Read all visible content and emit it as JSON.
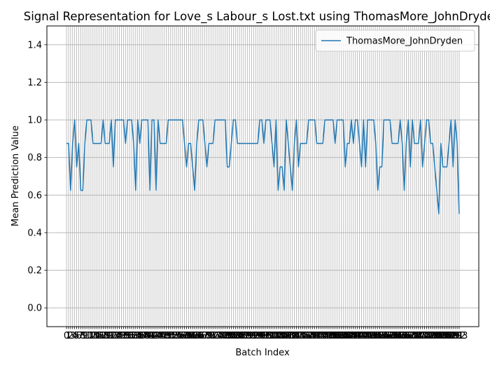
{
  "chart_data": {
    "type": "line",
    "title": "Signal Representation for Love_s Labour_s Lost.txt using ThomasMore_JohnDryden",
    "xlabel": "Batch Index",
    "ylabel": "Mean Prediction Value",
    "x": [
      0,
      1,
      2,
      3,
      4,
      5,
      6,
      7,
      8,
      9,
      10,
      11,
      12,
      13,
      14,
      15,
      16,
      17,
      18,
      19,
      20,
      21,
      22,
      23,
      24,
      25,
      26,
      27,
      28,
      29,
      30,
      31,
      32,
      33,
      34,
      35,
      36,
      37,
      38,
      39,
      40,
      41,
      42,
      43,
      44,
      45,
      46,
      47,
      48,
      49,
      50,
      51,
      52,
      53,
      54,
      55,
      56,
      57,
      58,
      59,
      60,
      61,
      62,
      63,
      64,
      65,
      66,
      67,
      68,
      69,
      70,
      71,
      72,
      73,
      74,
      75,
      76,
      77,
      78,
      79,
      80,
      81,
      82,
      83,
      84,
      85,
      86,
      87,
      88,
      89,
      90,
      91,
      92,
      93,
      94,
      95,
      96,
      97,
      98,
      99,
      100,
      101,
      102,
      103,
      104,
      105,
      106,
      107,
      108,
      109,
      110,
      111,
      112,
      113,
      114,
      115,
      116,
      117,
      118,
      119,
      120,
      121,
      122,
      123,
      124,
      125,
      126,
      127,
      128,
      129,
      130,
      131,
      132,
      133,
      134,
      135,
      136,
      137,
      138,
      139,
      140,
      141,
      142,
      143,
      144,
      145,
      146,
      147,
      148,
      149,
      150,
      151,
      152,
      153,
      154,
      155,
      156,
      157,
      158,
      159,
      160,
      161,
      162,
      163,
      164,
      165,
      166,
      167,
      168,
      169,
      170,
      171,
      172,
      173,
      174,
      175,
      176,
      177,
      178,
      179,
      180,
      181,
      182,
      183,
      184,
      185,
      186,
      187,
      188,
      189,
      190,
      191,
      192,
      193
    ],
    "series": [
      {
        "name": "ThomasMore_JohnDryden",
        "color": "#1f77b4",
        "values": [
          0.875,
          0.875,
          0.625,
          0.875,
          1,
          0.75,
          0.875,
          0.625,
          0.625,
          0.875,
          1,
          1,
          1,
          0.875,
          0.875,
          0.875,
          0.875,
          0.875,
          1,
          0.875,
          0.875,
          0.875,
          1,
          0.75,
          1,
          1,
          1,
          1,
          1,
          0.875,
          1,
          1,
          1,
          0.875,
          0.625,
          1,
          0.875,
          1,
          1,
          1,
          1,
          0.625,
          1,
          1,
          0.625,
          1,
          0.875,
          0.875,
          0.875,
          0.875,
          1,
          1,
          1,
          1,
          1,
          1,
          1,
          1,
          0.875,
          0.75,
          0.875,
          0.875,
          0.75,
          0.625,
          0.875,
          1,
          1,
          1,
          0.875,
          0.75,
          0.875,
          0.875,
          0.875,
          1,
          1,
          1,
          1,
          1,
          1,
          0.75,
          0.75,
          0.875,
          1,
          1,
          0.875,
          0.875,
          0.875,
          0.875,
          0.875,
          0.875,
          0.875,
          0.875,
          0.875,
          0.875,
          0.875,
          1,
          1,
          0.875,
          1,
          1,
          1,
          0.875,
          0.75,
          1,
          0.625,
          0.75,
          0.75,
          0.625,
          1,
          0.875,
          0.75,
          0.625,
          0.875,
          1,
          0.75,
          0.875,
          0.875,
          0.875,
          0.875,
          1,
          1,
          1,
          1,
          0.875,
          0.875,
          0.875,
          0.875,
          1,
          1,
          1,
          1,
          1,
          0.875,
          1,
          1,
          1,
          1,
          0.75,
          0.875,
          0.875,
          1,
          0.875,
          1,
          1,
          0.875,
          0.75,
          1,
          0.75,
          1,
          1,
          1,
          1,
          0.875,
          0.625,
          0.75,
          0.75,
          1,
          1,
          1,
          1,
          0.875,
          0.875,
          0.875,
          0.875,
          1,
          0.875,
          0.625,
          0.875,
          1,
          0.75,
          1,
          0.875,
          0.875,
          0.875,
          1,
          0.75,
          0.875,
          1,
          1,
          0.875,
          0.875,
          0.75,
          0.625,
          0.5,
          0.875,
          0.75,
          0.75,
          0.75,
          0.875,
          1,
          0.75,
          1,
          0.875,
          0.5
        ]
      }
    ],
    "xlim": [
      -9.65,
      202.65
    ],
    "xticks": [
      0,
      1,
      2,
      3,
      4,
      5,
      6,
      7,
      8,
      9,
      10,
      11,
      12,
      13,
      14,
      15,
      16,
      17,
      18,
      19,
      20,
      21,
      22,
      23,
      24,
      25,
      26,
      27,
      28,
      29,
      30,
      31,
      32,
      33,
      34,
      35,
      36,
      37,
      38,
      39,
      40,
      41,
      42,
      43,
      44,
      45,
      46,
      47,
      48,
      49,
      50,
      51,
      52,
      53,
      54,
      55,
      56,
      57,
      58,
      59,
      60,
      61,
      62,
      63,
      64,
      65,
      66,
      67,
      68,
      69,
      70,
      71,
      72,
      73,
      74,
      75,
      76,
      77,
      78,
      79,
      80,
      81,
      82,
      83,
      84,
      85,
      86,
      87,
      88,
      89,
      90,
      91,
      92,
      93,
      94,
      95,
      96,
      97,
      98,
      99,
      100,
      101,
      102,
      103,
      104,
      105,
      106,
      107,
      108,
      109,
      110,
      111,
      112,
      113,
      114,
      115,
      116,
      117,
      118,
      119,
      120,
      121,
      122,
      123,
      124,
      125,
      126,
      127,
      128,
      129,
      130,
      131,
      132,
      133,
      134,
      135,
      136,
      137,
      138,
      139,
      140,
      141,
      142,
      143,
      144,
      145,
      146,
      147,
      148,
      149,
      150,
      151,
      152,
      153,
      154,
      155,
      156,
      157,
      158,
      159,
      160,
      161,
      162,
      163,
      164,
      165,
      166,
      167,
      168,
      169,
      170,
      171,
      172,
      173,
      174,
      175,
      176,
      177,
      178,
      179,
      180,
      181,
      182,
      183,
      184,
      185,
      186,
      187,
      188,
      189,
      190,
      191,
      192,
      193
    ],
    "ylim": [
      -0.1,
      1.5
    ],
    "yticks": [
      {
        "value": 0,
        "label": "0.0"
      },
      {
        "value": 0.2,
        "label": "0.2"
      },
      {
        "value": 0.4,
        "label": "0.4"
      },
      {
        "value": 0.6,
        "label": "0.6"
      },
      {
        "value": 0.8,
        "label": "0.8"
      },
      {
        "value": 1.0,
        "label": "1.0"
      },
      {
        "value": 1.2,
        "label": "1.2"
      },
      {
        "value": 1.4,
        "label": "1.4"
      }
    ],
    "grid": true,
    "legend": "upper right"
  }
}
